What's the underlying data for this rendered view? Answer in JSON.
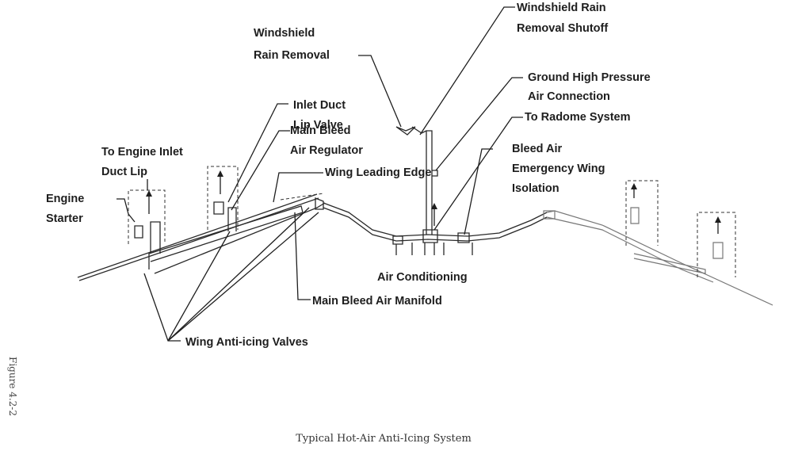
{
  "labels": {
    "windshield_rain_removal": [
      "Windshield",
      "Rain Removal"
    ],
    "windshield_shutoff": [
      "Windshield Rain",
      "Removal Shutoff"
    ],
    "ground_connection": [
      "Ground High Pressure",
      "Air Connection"
    ],
    "radome": [
      "To Radome System"
    ],
    "bleed_isolation": [
      "Bleed Air",
      "Emergency Wing",
      "Isolation"
    ],
    "inlet_lip_valve": [
      "Inlet Duct",
      "Lip Valve"
    ],
    "bleed_regulator": [
      "Main Bleed",
      "Air Regulator"
    ],
    "engine_inlet": [
      "To Engine Inlet",
      "Duct Lip"
    ],
    "leading_edge": [
      "Wing Leading Edge"
    ],
    "engine_starter": [
      "Engine",
      "Starter"
    ],
    "air_conditioning": [
      "Air Conditioning"
    ],
    "manifold": [
      "Main Bleed Air Manifold"
    ],
    "anti_icing_valves": [
      "Wing Anti-icing Valves"
    ]
  },
  "caption": "Typical Hot-Air Anti-Icing System",
  "figure_number": "Figure 4.2-2"
}
